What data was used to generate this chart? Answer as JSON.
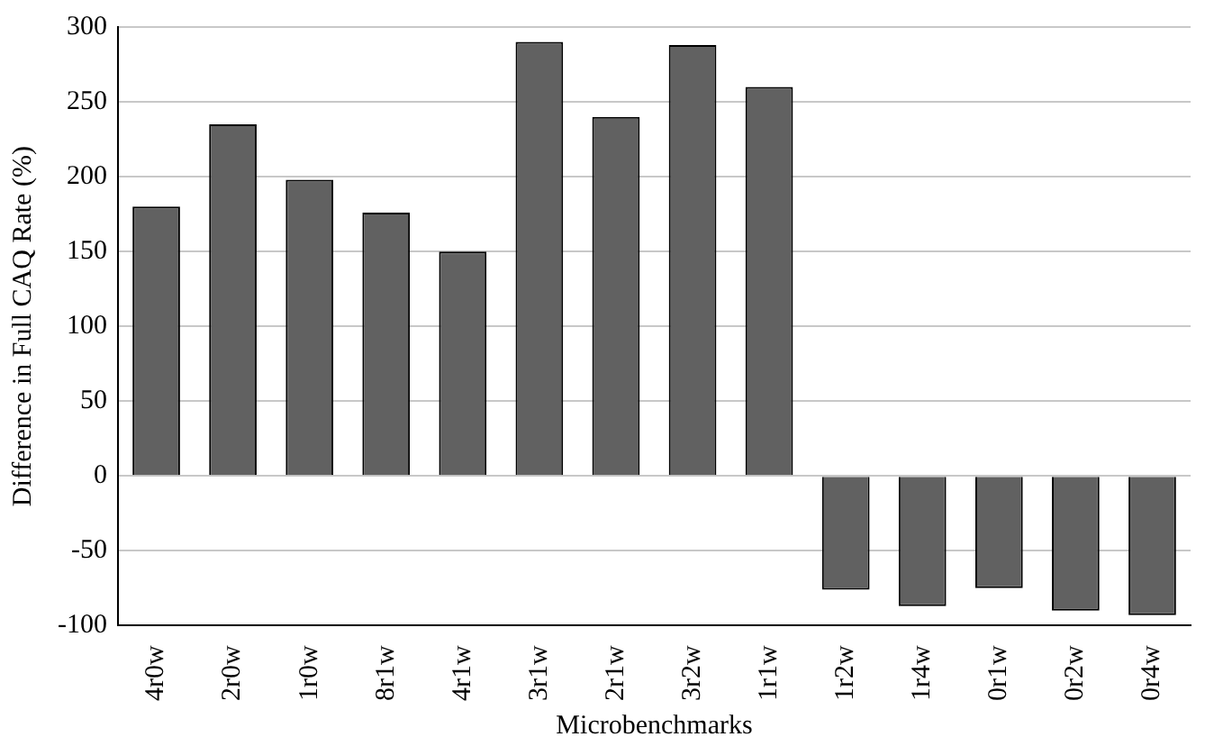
{
  "chart_data": {
    "type": "bar",
    "xlabel": "Microbenchmarks",
    "ylabel": "Difference in Full CAQ Rate (%)",
    "categories": [
      "4r0w",
      "2r0w",
      "1r0w",
      "8r1w",
      "4r1w",
      "3r1w",
      "2r1w",
      "3r2w",
      "1r1w",
      "1r2w",
      "1r4w",
      "0r1w",
      "0r2w",
      "0r4w"
    ],
    "values": [
      180,
      235,
      198,
      176,
      150,
      290,
      240,
      288,
      260,
      -76,
      -87,
      -75,
      -90,
      -93
    ],
    "color": "#616161",
    "ylim": [
      -100,
      300
    ],
    "yticks": [
      -100,
      -50,
      0,
      50,
      100,
      150,
      200,
      250,
      300
    ],
    "grid": "y",
    "legend": false
  }
}
